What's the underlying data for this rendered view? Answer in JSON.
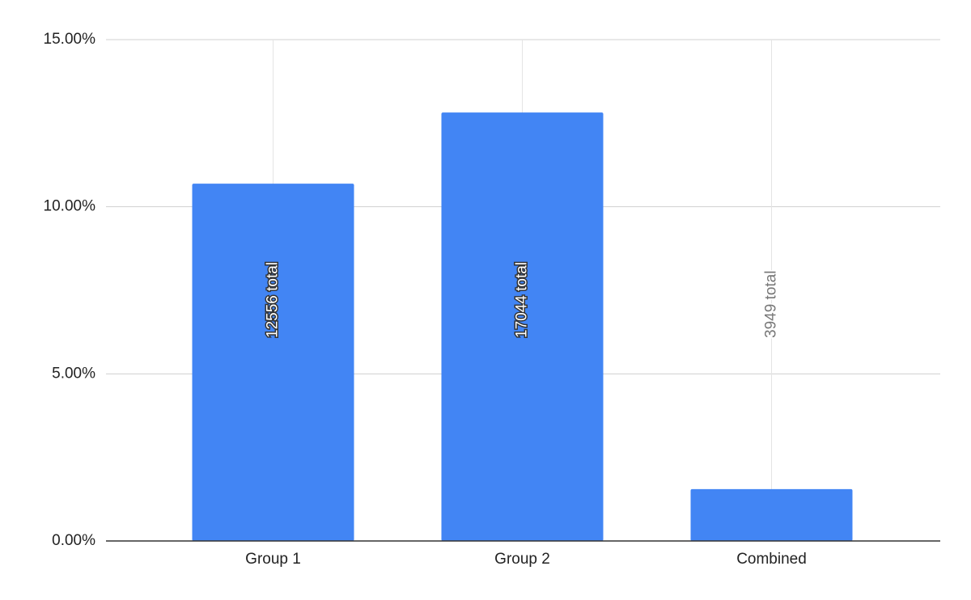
{
  "chart_data": {
    "type": "bar",
    "categories": [
      "Group 1",
      "Group 2",
      "Combined"
    ],
    "values": [
      10.69,
      12.82,
      1.55
    ],
    "annotations": [
      "12556 total",
      "17044 total",
      "3949 total"
    ],
    "color": "#4285f4",
    "ylim": [
      0,
      15
    ],
    "yticks": [
      {
        "value": 0,
        "label": "0.00%"
      },
      {
        "value": 5,
        "label": "5.00%"
      },
      {
        "value": 10,
        "label": "10.00%"
      },
      {
        "value": 15,
        "label": "15.00%"
      }
    ],
    "grid": true
  }
}
